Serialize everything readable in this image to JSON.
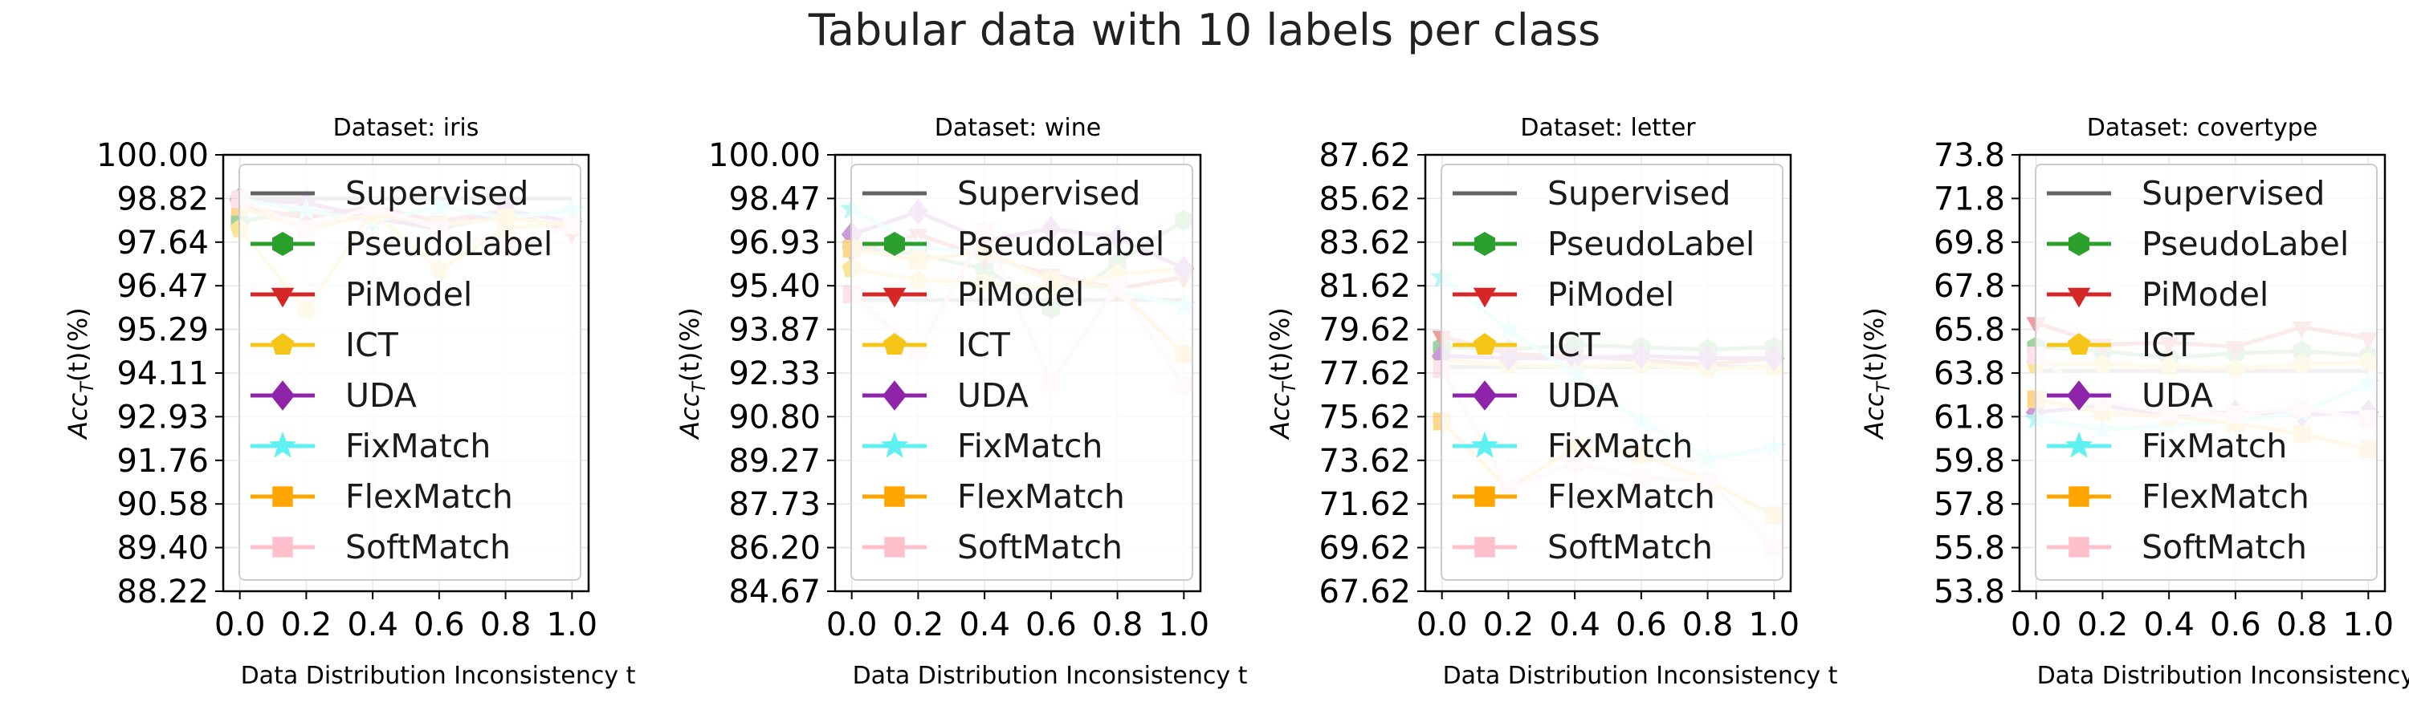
{
  "figure": {
    "title": "Tabular data with 10 labels per class"
  },
  "legend_labels": [
    "Supervised",
    "PseudoLabel",
    "PiModel",
    "ICT",
    "UDA",
    "FixMatch",
    "FlexMatch",
    "SoftMatch"
  ],
  "colors": {
    "Supervised": "#636363",
    "PseudoLabel": "#2ca02c",
    "PiModel": "#d62728",
    "ICT": "#f5c518",
    "UDA": "#8e24aa",
    "FixMatch": "#5ff1f1",
    "FlexMatch": "#ffa500",
    "SoftMatch": "#ffc0cb"
  },
  "markers": {
    "Supervised": "none",
    "PseudoLabel": "hexagon",
    "PiModel": "triangle-down",
    "ICT": "pentagon",
    "UDA": "diamond",
    "FixMatch": "star",
    "FlexMatch": "square",
    "SoftMatch": "square"
  },
  "chart_data": [
    {
      "type": "line",
      "title": "Dataset: iris",
      "xlabel": "Data Distribution Inconsistency t",
      "ylabel": "Acc_T(t)(%)",
      "x": [
        0.0,
        0.2,
        0.4,
        0.6,
        0.8,
        1.0
      ],
      "xticks": [
        "0.0",
        "0.2",
        "0.4",
        "0.6",
        "0.8",
        "1.0"
      ],
      "ylim": [
        88.22,
        100.0
      ],
      "yticks": [
        "88.22",
        "89.40",
        "90.58",
        "91.76",
        "92.93",
        "94.11",
        "95.29",
        "96.47",
        "97.64",
        "98.82",
        "100.00"
      ],
      "grid": true,
      "legend": "upper-left",
      "series": [
        {
          "name": "Supervised",
          "values": [
            98.82,
            98.82,
            98.82,
            98.82,
            98.82,
            98.82
          ]
        },
        {
          "name": "PseudoLabel",
          "values": [
            98.2,
            98.5,
            98.3,
            98.0,
            98.4,
            98.0
          ]
        },
        {
          "name": "PiModel",
          "values": [
            98.6,
            98.3,
            98.6,
            98.2,
            98.5,
            97.9
          ]
        },
        {
          "name": "ICT",
          "values": [
            98.0,
            95.8,
            98.5,
            96.9,
            98.0,
            98.2
          ]
        },
        {
          "name": "UDA",
          "values": [
            98.8,
            98.7,
            98.3,
            98.0,
            98.5,
            98.2
          ]
        },
        {
          "name": "FixMatch",
          "values": [
            98.8,
            98.5,
            98.2,
            98.6,
            98.3,
            98.5
          ]
        },
        {
          "name": "FlexMatch",
          "values": [
            98.6,
            98.0,
            98.4,
            98.1,
            98.3,
            98.1
          ]
        },
        {
          "name": "SoftMatch",
          "values": [
            98.8,
            98.0,
            98.6,
            98.0,
            97.5,
            98.1
          ]
        }
      ]
    },
    {
      "type": "line",
      "title": "Dataset: wine",
      "xlabel": "Data Distribution Inconsistency t",
      "ylabel": "Acc_T(t)(%)",
      "x": [
        0.0,
        0.2,
        0.4,
        0.6,
        0.8,
        1.0
      ],
      "xticks": [
        "0.0",
        "0.2",
        "0.4",
        "0.6",
        "0.8",
        "1.0"
      ],
      "ylim": [
        84.67,
        100.0
      ],
      "yticks": [
        "84.67",
        "86.20",
        "87.73",
        "89.27",
        "90.80",
        "92.33",
        "93.87",
        "95.40",
        "96.93",
        "98.47",
        "100.00"
      ],
      "grid": true,
      "legend": "upper-left",
      "series": [
        {
          "name": "Supervised",
          "values": [
            94.9,
            94.9,
            94.9,
            94.9,
            94.9,
            94.9
          ]
        },
        {
          "name": "PseudoLabel",
          "values": [
            96.8,
            96.5,
            96.0,
            94.6,
            96.2,
            97.7
          ]
        },
        {
          "name": "PiModel",
          "values": [
            96.6,
            97.2,
            96.4,
            95.8,
            95.3,
            95.7
          ]
        },
        {
          "name": "ICT",
          "values": [
            96.0,
            95.6,
            95.5,
            95.3,
            95.8,
            96.0
          ]
        },
        {
          "name": "UDA",
          "values": [
            97.2,
            98.0,
            97.0,
            97.4,
            97.1,
            96.0
          ]
        },
        {
          "name": "FixMatch",
          "values": [
            98.1,
            96.8,
            96.5,
            95.6,
            95.2,
            94.7
          ]
        },
        {
          "name": "FlexMatch",
          "values": [
            96.7,
            96.3,
            96.6,
            95.6,
            95.3,
            93.0
          ]
        },
        {
          "name": "SoftMatch",
          "values": [
            95.1,
            93.1,
            97.3,
            92.0,
            95.4,
            91.9
          ]
        }
      ]
    },
    {
      "type": "line",
      "title": "Dataset: letter",
      "xlabel": "Data Distribution Inconsistency t",
      "ylabel": "Acc_T(t)(%)",
      "x": [
        0.0,
        0.2,
        0.4,
        0.6,
        0.8,
        1.0
      ],
      "xticks": [
        "0.0",
        "0.2",
        "0.4",
        "0.6",
        "0.8",
        "1.0"
      ],
      "ylim": [
        67.62,
        87.62
      ],
      "yticks": [
        "67.62",
        "69.62",
        "71.62",
        "73.62",
        "75.62",
        "77.62",
        "79.62",
        "81.62",
        "83.62",
        "85.62",
        "87.62"
      ],
      "grid": true,
      "legend": "upper-left",
      "series": [
        {
          "name": "Supervised",
          "values": [
            77.9,
            77.9,
            77.9,
            77.9,
            77.9,
            77.9
          ]
        },
        {
          "name": "PseudoLabel",
          "values": [
            78.8,
            78.7,
            78.9,
            78.8,
            78.7,
            78.8
          ]
        },
        {
          "name": "PiModel",
          "values": [
            79.3,
            78.5,
            78.4,
            78.2,
            78.0,
            78.3
          ]
        },
        {
          "name": "ICT",
          "values": [
            78.2,
            78.0,
            77.9,
            78.0,
            77.8,
            77.9
          ]
        },
        {
          "name": "UDA",
          "values": [
            78.4,
            78.3,
            78.3,
            78.4,
            78.3,
            78.3
          ]
        },
        {
          "name": "FixMatch",
          "values": [
            82.0,
            79.6,
            77.6,
            75.4,
            73.7,
            74.2
          ]
        },
        {
          "name": "FlexMatch",
          "values": [
            75.4,
            72.3,
            74.2,
            73.9,
            72.7,
            71.1
          ]
        },
        {
          "name": "SoftMatch",
          "values": [
            77.8,
            72.3,
            73.5,
            72.8,
            72.7,
            69.6
          ]
        }
      ]
    },
    {
      "type": "line",
      "title": "Dataset: covertype",
      "xlabel": "Data Distribution Inconsistency t",
      "ylabel": "Acc_T(t)(%)",
      "x": [
        0.0,
        0.2,
        0.4,
        0.6,
        0.8,
        1.0
      ],
      "xticks": [
        "0.0",
        "0.2",
        "0.4",
        "0.6",
        "0.8",
        "1.0"
      ],
      "ylim": [
        53.8,
        73.8
      ],
      "yticks": [
        "53.8",
        "55.8",
        "57.8",
        "59.8",
        "61.8",
        "63.8",
        "65.8",
        "67.8",
        "69.8",
        "71.8",
        "73.8"
      ],
      "grid": true,
      "legend": "upper-left",
      "series": [
        {
          "name": "Supervised",
          "values": [
            63.9,
            63.9,
            63.9,
            63.9,
            63.9,
            63.9
          ]
        },
        {
          "name": "PseudoLabel",
          "values": [
            65.0,
            64.8,
            64.5,
            64.7,
            64.8,
            64.6
          ]
        },
        {
          "name": "PiModel",
          "values": [
            66.1,
            65.1,
            65.2,
            65.0,
            65.9,
            65.4
          ]
        },
        {
          "name": "ICT",
          "values": [
            64.2,
            64.2,
            64.1,
            64.0,
            64.2,
            64.3
          ]
        },
        {
          "name": "UDA",
          "values": [
            62.0,
            62.3,
            61.9,
            62.0,
            61.9,
            62.0
          ]
        },
        {
          "name": "FixMatch",
          "values": [
            61.7,
            61.2,
            61.4,
            61.6,
            62.0,
            63.3
          ]
        },
        {
          "name": "FlexMatch",
          "values": [
            62.6,
            62.0,
            61.8,
            61.5,
            61.0,
            60.3
          ]
        },
        {
          "name": "SoftMatch",
          "values": [
            64.6,
            62.5,
            62.0,
            61.9,
            62.2,
            61.7
          ]
        }
      ]
    }
  ]
}
